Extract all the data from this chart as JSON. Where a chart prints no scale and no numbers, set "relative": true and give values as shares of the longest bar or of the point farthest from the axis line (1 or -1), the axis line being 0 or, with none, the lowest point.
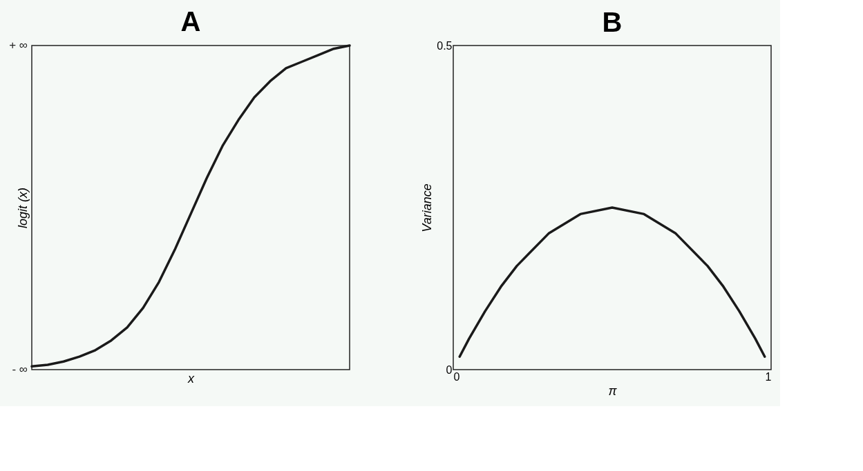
{
  "chart_data": [
    {
      "type": "line",
      "title": "A",
      "xlabel": "x",
      "ylabel": "logit (x)",
      "relative": true,
      "categories": [
        null,
        null,
        null,
        null,
        null,
        null,
        null,
        null,
        null,
        null,
        null,
        null,
        null,
        null,
        null,
        null,
        null,
        null,
        null,
        null,
        null
      ],
      "annotations": [
        "+ ∞",
        "- ∞"
      ],
      "series": [
        {
          "color": "#1a1a1a",
          "values": [
            0.01,
            0.015,
            0.025,
            0.04,
            0.06,
            0.09,
            0.13,
            0.19,
            0.27,
            0.37,
            0.48,
            0.59,
            0.69,
            0.77,
            0.84,
            0.89,
            0.93,
            0.95,
            0.97,
            0.99,
            1.0
          ]
        }
      ],
      "grid": false
    },
    {
      "type": "line",
      "title": "B",
      "xlabel": "π",
      "ylabel": "Variance",
      "xlim": [
        0,
        1
      ],
      "xticks": [
        0,
        1
      ],
      "ylim": [
        0,
        0.5
      ],
      "yticks": [
        0,
        0.5
      ],
      "series": [
        {
          "color": "#1a1a1a",
          "x": [
            0.02,
            0.05,
            0.1,
            0.15,
            0.2,
            0.3,
            0.4,
            0.5,
            0.6,
            0.7,
            0.8,
            0.85,
            0.9,
            0.95,
            0.98
          ],
          "values": [
            0.02,
            0.048,
            0.09,
            0.128,
            0.16,
            0.21,
            0.24,
            0.25,
            0.24,
            0.21,
            0.16,
            0.128,
            0.09,
            0.048,
            0.02
          ]
        }
      ],
      "grid": false
    }
  ]
}
